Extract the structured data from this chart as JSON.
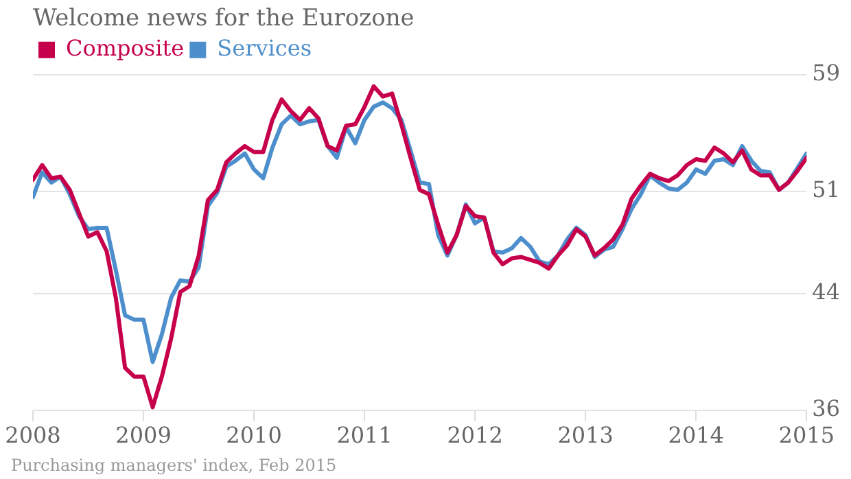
{
  "chart_data": {
    "type": "line",
    "title": "Welcome news for the Eurozone",
    "annotations": [
      "Purchasing managers' index, Feb 2015"
    ],
    "x": [
      "2008-01",
      "2008-02",
      "2008-03",
      "2008-04",
      "2008-05",
      "2008-06",
      "2008-07",
      "2008-08",
      "2008-09",
      "2008-10",
      "2008-11",
      "2008-12",
      "2009-01",
      "2009-02",
      "2009-03",
      "2009-04",
      "2009-05",
      "2009-06",
      "2009-07",
      "2009-08",
      "2009-09",
      "2009-10",
      "2009-11",
      "2009-12",
      "2010-01",
      "2010-02",
      "2010-03",
      "2010-04",
      "2010-05",
      "2010-06",
      "2010-07",
      "2010-08",
      "2010-09",
      "2010-10",
      "2010-11",
      "2010-12",
      "2011-01",
      "2011-02",
      "2011-03",
      "2011-04",
      "2011-05",
      "2011-06",
      "2011-07",
      "2011-08",
      "2011-09",
      "2011-10",
      "2011-11",
      "2011-12",
      "2012-01",
      "2012-02",
      "2012-03",
      "2012-04",
      "2012-05",
      "2012-06",
      "2012-07",
      "2012-08",
      "2012-09",
      "2012-10",
      "2012-11",
      "2012-12",
      "2013-01",
      "2013-02",
      "2013-03",
      "2013-04",
      "2013-05",
      "2013-06",
      "2013-07",
      "2013-08",
      "2013-09",
      "2013-10",
      "2013-11",
      "2013-12",
      "2014-01",
      "2014-02",
      "2014-03",
      "2014-04",
      "2014-05",
      "2014-06",
      "2014-07",
      "2014-08",
      "2014-09",
      "2014-10",
      "2014-11",
      "2014-12",
      "2015-01"
    ],
    "series": [
      {
        "name": "Composite",
        "color": "#c7004c",
        "values": [
          51.8,
          52.8,
          51.9,
          52.0,
          51.1,
          49.5,
          47.9,
          48.2,
          46.9,
          43.7,
          38.9,
          38.3,
          38.3,
          36.2,
          38.3,
          40.9,
          44.1,
          44.5,
          46.6,
          50.4,
          51.1,
          53.0,
          53.6,
          54.1,
          53.7,
          53.7,
          55.9,
          57.3,
          56.5,
          55.9,
          56.7,
          56.0,
          54.1,
          53.8,
          55.5,
          55.6,
          56.8,
          58.2,
          57.5,
          57.7,
          55.6,
          53.3,
          51.1,
          50.8,
          48.7,
          46.8,
          48.0,
          50.0,
          49.3,
          49.2,
          46.8,
          46.0,
          46.4,
          46.5,
          46.3,
          46.1,
          45.7,
          46.6,
          47.3,
          48.4,
          47.9,
          46.6,
          47.1,
          47.7,
          48.7,
          50.5,
          51.4,
          52.2,
          51.9,
          51.7,
          52.1,
          52.8,
          53.2,
          53.1,
          54.0,
          53.6,
          53.0,
          53.8,
          52.5,
          52.1,
          52.1,
          51.1,
          51.6,
          52.4,
          53.3
        ]
      },
      {
        "name": "Services",
        "color": "#4d8fcc",
        "values": [
          50.6,
          52.3,
          51.6,
          52.0,
          50.8,
          49.3,
          48.4,
          48.5,
          48.5,
          45.6,
          42.5,
          42.2,
          42.2,
          39.3,
          41.2,
          43.7,
          44.9,
          44.8,
          45.8,
          50.0,
          50.9,
          52.7,
          53.1,
          53.6,
          52.5,
          51.9,
          54.0,
          55.6,
          56.2,
          55.6,
          55.8,
          55.9,
          54.1,
          53.3,
          55.4,
          54.3,
          55.9,
          56.8,
          57.1,
          56.7,
          55.9,
          53.8,
          51.6,
          51.5,
          48.0,
          46.6,
          48.0,
          50.1,
          48.8,
          49.2,
          46.9,
          46.8,
          47.1,
          47.8,
          47.2,
          46.2,
          46.0,
          46.6,
          47.7,
          48.5,
          48.0,
          46.5,
          47.0,
          47.2,
          48.4,
          49.8,
          50.8,
          52.1,
          51.6,
          51.2,
          51.1,
          51.6,
          52.5,
          52.2,
          53.1,
          53.2,
          52.8,
          54.1,
          53.1,
          52.4,
          52.3,
          51.1,
          51.6,
          52.6,
          53.6
        ]
      }
    ],
    "xlim": [
      "2008-01",
      "2015-01"
    ],
    "xticks": [
      "2008",
      "2009",
      "2010",
      "2011",
      "2012",
      "2013",
      "2014",
      "2015"
    ],
    "ylim": [
      36,
      59
    ],
    "yticks": [
      36,
      44,
      51,
      59
    ],
    "grid": "y",
    "legend": "top left",
    "marker": "none",
    "line_style": "solid"
  }
}
